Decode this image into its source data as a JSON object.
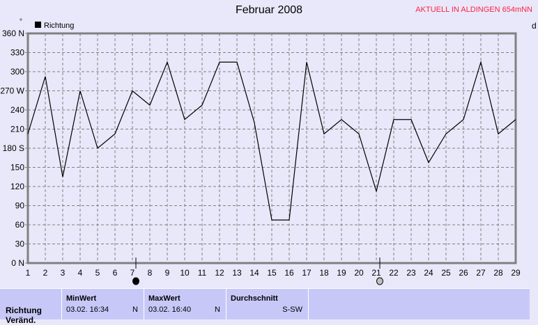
{
  "header": {
    "title": "Februar 2008",
    "status": "AKTUELL IN ALDINGEN 654mNN",
    "right_label": "d"
  },
  "chart_data": {
    "type": "line",
    "title": "Februar 2008",
    "legend": [
      "Richtung"
    ],
    "legend_position": "top-left",
    "x": [
      1,
      2,
      3,
      4,
      5,
      6,
      7,
      8,
      9,
      10,
      11,
      12,
      13,
      14,
      15,
      16,
      17,
      18,
      19,
      20,
      21,
      22,
      23,
      24,
      25,
      26,
      27,
      28,
      29
    ],
    "series": [
      {
        "name": "Richtung",
        "values": [
          202.5,
          292.5,
          135,
          270,
          180,
          202.5,
          270,
          247.5,
          315,
          225,
          247.5,
          315,
          315,
          220,
          67.5,
          67.5,
          315,
          202.5,
          225,
          202.5,
          112.5,
          225,
          225,
          157.5,
          202.5,
          225,
          315,
          202.5,
          225
        ]
      }
    ],
    "ylim": [
      0,
      360
    ],
    "xlim": [
      1,
      29
    ],
    "grid": true,
    "yticks": [
      "0  N",
      "30",
      "60",
      "90",
      "120",
      "150",
      "180 S",
      "210",
      "240",
      "270 W",
      "300",
      "330",
      "360 N"
    ],
    "moon_phases": [
      {
        "day": 7.2,
        "phase": "full"
      },
      {
        "day": 21.2,
        "phase": "new"
      }
    ],
    "colors": {
      "line": "#000000",
      "grid": "#808080"
    }
  },
  "table": {
    "row_label": "Richtung",
    "row_label2": "Veränd.",
    "columns": [
      {
        "title": "MinWert",
        "date": "03.02.  16:34",
        "value": "N"
      },
      {
        "title": "MaxWert",
        "date": "03.02.  16:40",
        "value": "N"
      },
      {
        "title": "Durchschnitt",
        "date": "",
        "value": "S-SW"
      }
    ]
  }
}
